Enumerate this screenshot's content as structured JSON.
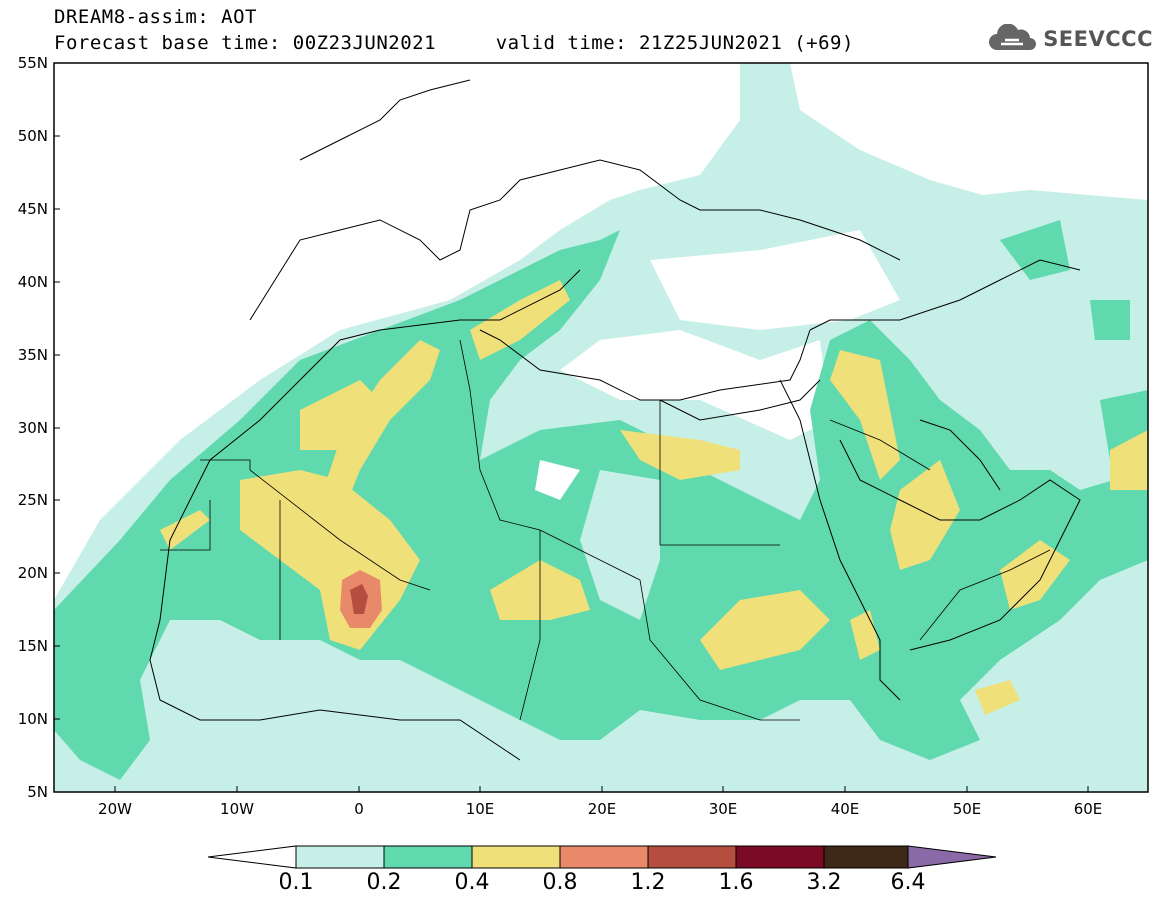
{
  "header": {
    "title_line1": "DREAM8-assim: AOT",
    "title_line2": "Forecast base time: 00Z23JUN2021     valid time: 21Z25JUN2021 (+69)"
  },
  "logo": {
    "text": "SEEVCCC",
    "icon": "cloud-icon"
  },
  "axes": {
    "lat_labels": [
      "55N",
      "50N",
      "45N",
      "40N",
      "35N",
      "30N",
      "25N",
      "20N",
      "15N",
      "10N",
      "5N"
    ],
    "lon_labels": [
      "20W",
      "10W",
      "0",
      "10E",
      "20E",
      "30E",
      "40E",
      "50E",
      "60E"
    ]
  },
  "colorbar": {
    "labels": [
      "0.1",
      "0.2",
      "0.4",
      "0.8",
      "1.2",
      "1.6",
      "3.2",
      "6.4"
    ],
    "colors": [
      "#c6efe7",
      "#5fd9ad",
      "#f0e07a",
      "#e8896a",
      "#b54e3f",
      "#7c0a25",
      "#3e2817",
      "#8a6aa6"
    ],
    "over_color": "#8a6aa6",
    "under_color": "#ffffff"
  },
  "map": {
    "region": "North Africa, Mediterranean, Middle East",
    "variable": "Aerosol Optical Thickness",
    "fill_colors": {
      "light": "#c6efe7",
      "green": "#5fd9ad",
      "yellow": "#f0e07a",
      "orange": "#e8896a",
      "red": "#b54e3f"
    }
  }
}
